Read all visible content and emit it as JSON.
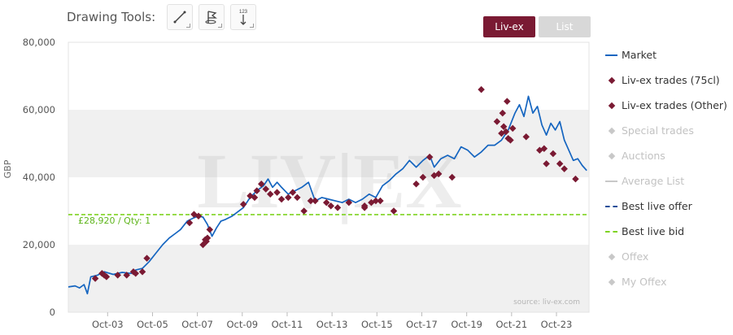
{
  "toolbar": {
    "label": "Drawing Tools:",
    "tools": [
      {
        "name": "line-tool-icon"
      },
      {
        "name": "flag-tool-icon"
      },
      {
        "name": "sort-123-icon",
        "text": "123"
      }
    ]
  },
  "tabs": [
    {
      "label": "Liv-ex",
      "active": true
    },
    {
      "label": "List",
      "active": false
    }
  ],
  "colors": {
    "market": "#1565c0",
    "trades": "#7a1a33",
    "bid": "#7ed321",
    "offer": "#1f4e99",
    "inactive": "#c8c8c8",
    "band": "#f0f0f0"
  },
  "watermark": "LIV|EX",
  "source": "source: liv-ex.com",
  "chart_data": {
    "type": "line",
    "ylabel": "GBP",
    "ylim": [
      0,
      80000
    ],
    "yticks": [
      "0",
      "20,000",
      "40,000",
      "60,000",
      "80,000"
    ],
    "ytick_values": [
      0,
      20000,
      40000,
      60000,
      80000
    ],
    "xlim": [
      2002.0,
      2025.2
    ],
    "xticks": [
      "Oct-03",
      "Oct-05",
      "Oct-07",
      "Oct-09",
      "Oct-11",
      "Oct-13",
      "Oct-15",
      "Oct-17",
      "Oct-19",
      "Oct-21",
      "Oct-23"
    ],
    "xtick_values": [
      2003.75,
      2005.75,
      2007.75,
      2009.75,
      2011.75,
      2013.75,
      2015.75,
      2017.75,
      2019.75,
      2021.75,
      2023.75
    ],
    "bid_label": "£28,920 / Qty: 1",
    "best_live_bid": 28920,
    "series": [
      {
        "name": "Market",
        "x": [
          2002.0,
          2002.3,
          2002.5,
          2002.7,
          2002.85,
          2003.0,
          2003.3,
          2003.6,
          2004.0,
          2004.4,
          2004.8,
          2005.0,
          2005.3,
          2005.6,
          2005.9,
          2006.2,
          2006.5,
          2006.8,
          2007.0,
          2007.3,
          2007.6,
          2007.8,
          2008.0,
          2008.2,
          2008.4,
          2008.6,
          2008.8,
          2009.0,
          2009.3,
          2009.5,
          2009.8,
          2010.1,
          2010.4,
          2010.7,
          2010.9,
          2011.1,
          2011.3,
          2011.5,
          2011.8,
          2012.1,
          2012.4,
          2012.7,
          2013.0,
          2013.3,
          2013.6,
          2013.9,
          2014.2,
          2014.5,
          2014.8,
          2015.1,
          2015.4,
          2015.7,
          2016.0,
          2016.3,
          2016.6,
          2016.9,
          2017.2,
          2017.5,
          2017.8,
          2018.1,
          2018.3,
          2018.6,
          2018.9,
          2019.2,
          2019.5,
          2019.8,
          2020.1,
          2020.4,
          2020.7,
          2021.0,
          2021.3,
          2021.6,
          2021.9,
          2022.1,
          2022.3,
          2022.5,
          2022.7,
          2022.9,
          2023.1,
          2023.3,
          2023.5,
          2023.7,
          2023.9,
          2024.1,
          2024.3,
          2024.5,
          2024.7,
          2024.9,
          2025.1
        ],
        "y": [
          7500,
          7800,
          7200,
          8200,
          5500,
          10500,
          11000,
          12000,
          11200,
          11800,
          11500,
          12500,
          13000,
          15000,
          17500,
          20000,
          22000,
          23500,
          24500,
          27000,
          28000,
          28500,
          28200,
          26000,
          22500,
          25000,
          27000,
          27500,
          28500,
          29500,
          31000,
          34000,
          36000,
          37500,
          39500,
          37000,
          38500,
          37000,
          35000,
          36000,
          37000,
          38500,
          33000,
          34000,
          33500,
          33000,
          32500,
          33500,
          32500,
          33500,
          35000,
          34000,
          37500,
          39000,
          41000,
          42500,
          45000,
          43000,
          45000,
          46500,
          43000,
          45500,
          46500,
          45500,
          49000,
          48000,
          46000,
          47500,
          49500,
          49500,
          51000,
          54000,
          59000,
          61500,
          58000,
          64000,
          59000,
          61000,
          55500,
          52500,
          56000,
          54000,
          56500,
          51000,
          48000,
          45000,
          45500,
          43500,
          42000
        ]
      },
      {
        "name": "Liv-ex trades (75cl)",
        "x": [
          2003.2,
          2003.5,
          2003.7,
          2004.2,
          2004.6,
          2004.9,
          2005.0,
          2005.5,
          2007.4,
          2007.6,
          2007.8,
          2008.0,
          2008.1,
          2008.2,
          2008.3,
          2009.8,
          2010.1,
          2010.4,
          2010.6,
          2011.0,
          2011.5,
          2012.0,
          2012.2,
          2012.5,
          2013.0,
          2013.5,
          2013.7,
          2014.0,
          2014.5,
          2015.2,
          2015.5,
          2015.9,
          2016.5,
          2017.5,
          2017.8,
          2018.1,
          2019.1,
          2020.4,
          2021.1,
          2021.3,
          2021.4,
          2021.5,
          2021.6,
          2021.7,
          2021.8,
          2022.4,
          2023.0,
          2023.3,
          2023.6,
          2023.9,
          2024.1,
          2024.6
        ],
        "y": [
          10000,
          11500,
          10500,
          11000,
          11000,
          12000,
          11500,
          16000,
          26500,
          29000,
          28500,
          20000,
          21500,
          22000,
          24500,
          32000,
          34500,
          36000,
          38000,
          35000,
          33500,
          35500,
          34000,
          30000,
          33000,
          32500,
          31500,
          31000,
          32500,
          31500,
          32500,
          33000,
          30000,
          38000,
          40000,
          46000,
          40000,
          66000,
          56500,
          53000,
          55000,
          53500,
          51500,
          51000,
          54500,
          52000,
          48000,
          44000,
          47000,
          44000,
          42500,
          39500
        ]
      },
      {
        "name": "Liv-ex trades (Other)",
        "x": [
          2003.6,
          2005.3,
          2008.15,
          2010.3,
          2010.8,
          2011.3,
          2011.8,
          2012.8,
          2015.2,
          2015.7,
          2018.3,
          2018.5,
          2021.35,
          2021.55,
          2023.2
        ],
        "y": [
          11000,
          12000,
          21000,
          34000,
          36500,
          35500,
          34000,
          33000,
          31000,
          33000,
          40500,
          41000,
          59000,
          62500,
          48500
        ]
      }
    ]
  },
  "legend": [
    {
      "label": "Market",
      "kind": "line",
      "active": true
    },
    {
      "label": "Liv-ex trades (75cl)",
      "kind": "diamond",
      "active": true
    },
    {
      "label": "Liv-ex trades (Other)",
      "kind": "diamond",
      "active": true
    },
    {
      "label": "Special trades",
      "kind": "diamond",
      "active": false
    },
    {
      "label": "Auctions",
      "kind": "diamond",
      "active": false
    },
    {
      "label": "Average List",
      "kind": "line",
      "active": false
    },
    {
      "label": "Best live offer",
      "kind": "dash-blue",
      "active": true
    },
    {
      "label": "Best live bid",
      "kind": "dash-green",
      "active": true
    },
    {
      "label": "Offex",
      "kind": "diamond",
      "active": false
    },
    {
      "label": "My Offex",
      "kind": "diamond",
      "active": false
    }
  ]
}
